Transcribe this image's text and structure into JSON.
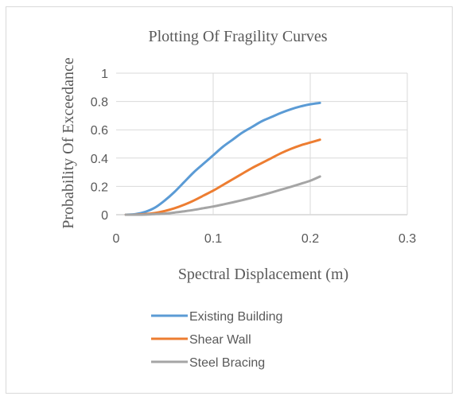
{
  "chart_data": {
    "type": "line",
    "title": "Plotting Of Fragility Curves",
    "xlabel": "Spectral Displacement (m)",
    "ylabel": "Probability Of Exceedance",
    "xlim": [
      0,
      0.3
    ],
    "ylim": [
      0,
      1
    ],
    "xticks": [
      0,
      0.1,
      0.2,
      0.3
    ],
    "yticks": [
      0,
      0.2,
      0.4,
      0.6,
      0.8,
      1
    ],
    "xtick_labels": [
      "0",
      "0.1",
      "0.2",
      "0.3"
    ],
    "ytick_labels": [
      "0",
      "0.2",
      "0.4",
      "0.6",
      "0.8",
      "1"
    ],
    "grid": true,
    "legend_position": "bottom",
    "series": [
      {
        "name": "Existing Building",
        "color": "#5b9bd5",
        "x": [
          0.01,
          0.02,
          0.03,
          0.04,
          0.05,
          0.06,
          0.07,
          0.08,
          0.09,
          0.1,
          0.11,
          0.12,
          0.13,
          0.14,
          0.15,
          0.16,
          0.17,
          0.18,
          0.19,
          0.2,
          0.21
        ],
        "y": [
          0.0,
          0.004,
          0.02,
          0.05,
          0.1,
          0.16,
          0.23,
          0.3,
          0.36,
          0.42,
          0.48,
          0.53,
          0.58,
          0.62,
          0.66,
          0.69,
          0.72,
          0.745,
          0.765,
          0.78,
          0.79
        ]
      },
      {
        "name": "Shear Wall",
        "color": "#ed7d31",
        "x": [
          0.01,
          0.02,
          0.03,
          0.04,
          0.05,
          0.06,
          0.07,
          0.08,
          0.09,
          0.1,
          0.11,
          0.12,
          0.13,
          0.14,
          0.15,
          0.16,
          0.17,
          0.18,
          0.19,
          0.2,
          0.21
        ],
        "y": [
          0.0,
          0.001,
          0.004,
          0.012,
          0.026,
          0.045,
          0.07,
          0.1,
          0.135,
          0.17,
          0.21,
          0.25,
          0.29,
          0.33,
          0.365,
          0.4,
          0.435,
          0.465,
          0.49,
          0.51,
          0.53
        ]
      },
      {
        "name": "Steel Bracing",
        "color": "#a5a5a5",
        "x": [
          0.01,
          0.02,
          0.03,
          0.04,
          0.05,
          0.06,
          0.07,
          0.08,
          0.09,
          0.1,
          0.11,
          0.12,
          0.13,
          0.14,
          0.15,
          0.16,
          0.17,
          0.18,
          0.19,
          0.2,
          0.21
        ],
        "y": [
          0.0,
          0.0,
          0.001,
          0.004,
          0.008,
          0.015,
          0.024,
          0.034,
          0.046,
          0.058,
          0.072,
          0.087,
          0.103,
          0.12,
          0.138,
          0.157,
          0.177,
          0.197,
          0.218,
          0.24,
          0.27
        ]
      }
    ]
  }
}
